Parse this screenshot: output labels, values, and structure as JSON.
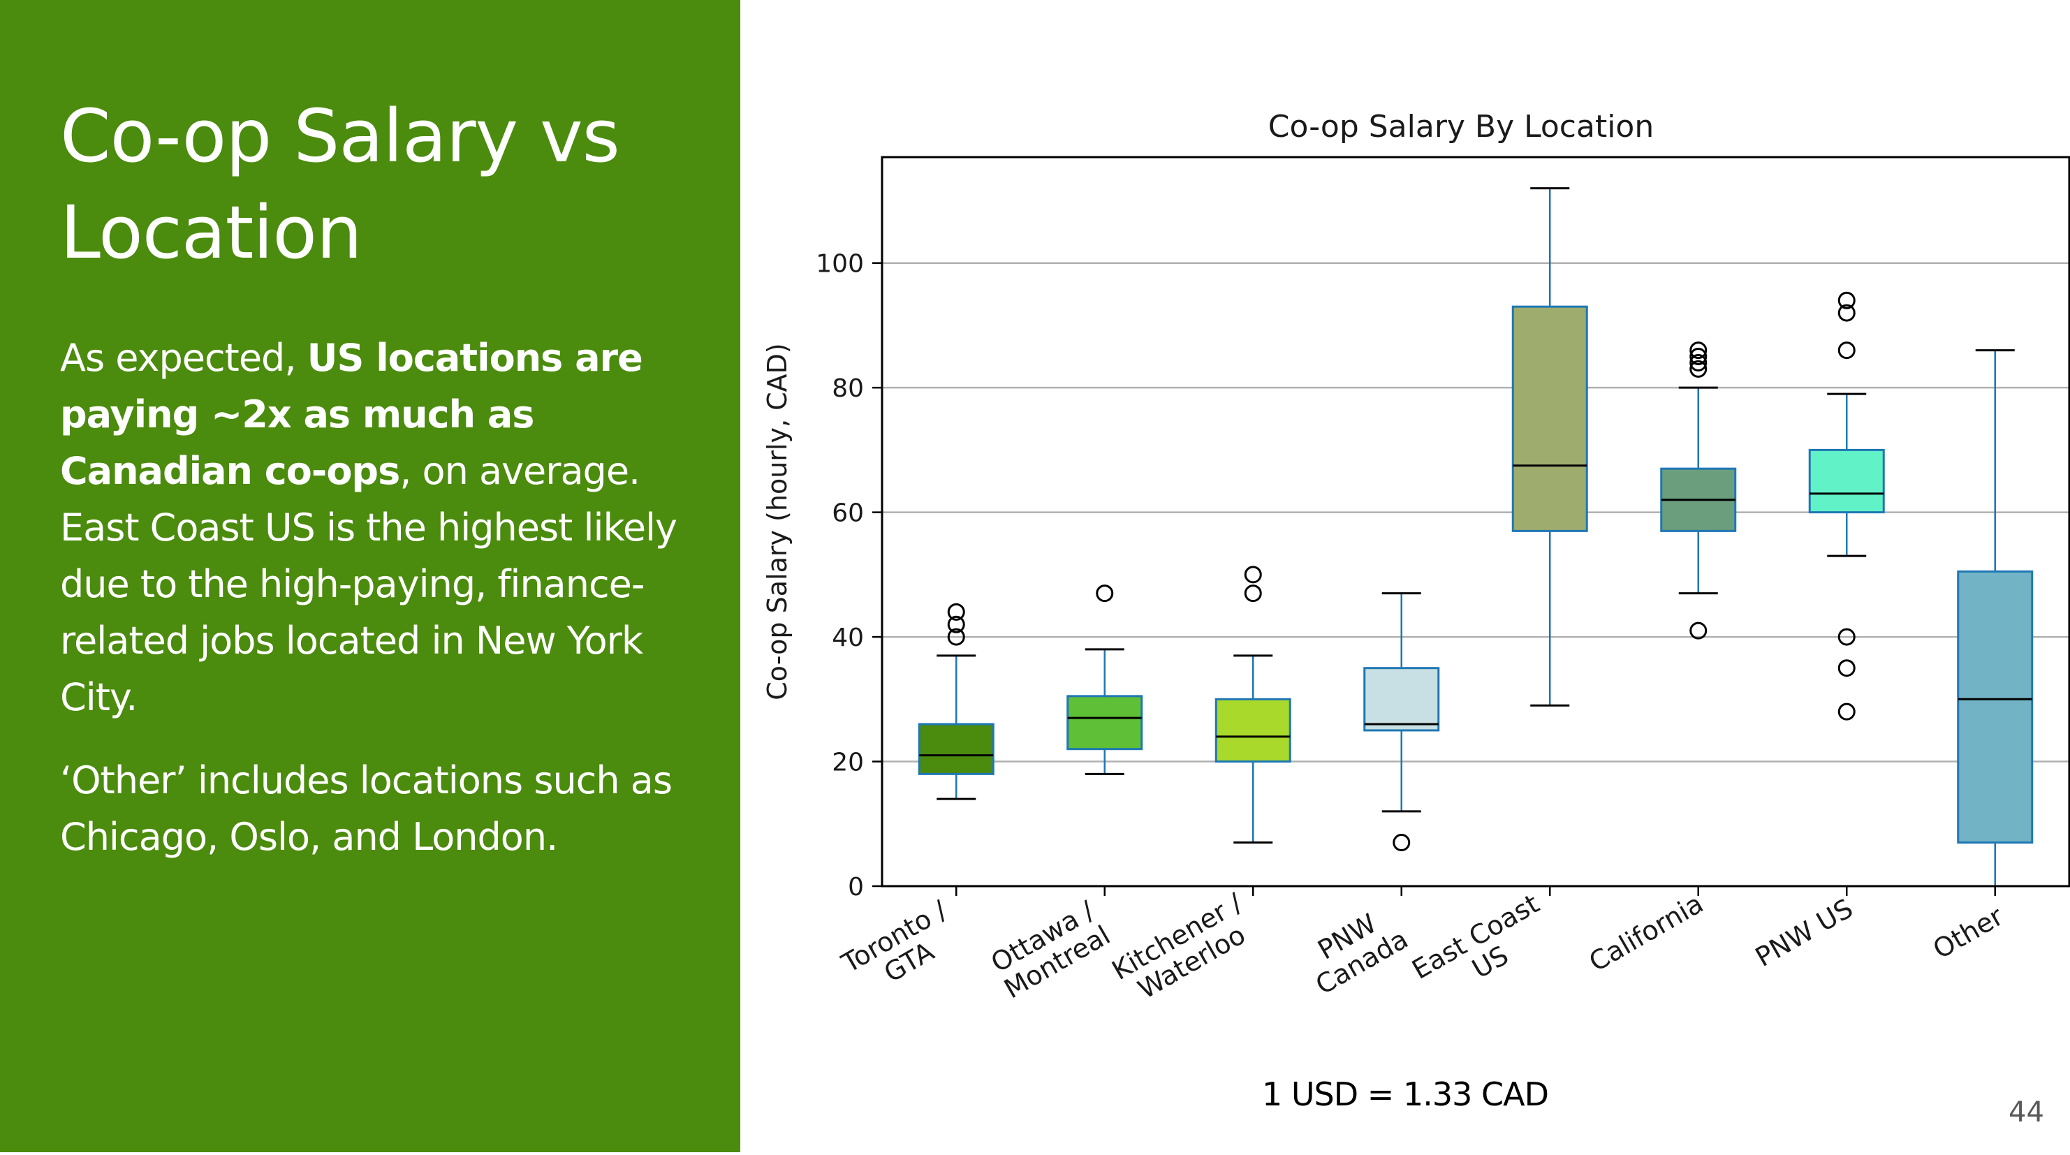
{
  "slide": {
    "title_line1": "Co-op Salary vs",
    "title_line2": "Location",
    "paragraph1": {
      "part1": "As expected, ",
      "bold": "US locations are paying ~2x as much as Canadian co-ops",
      "part2": ", on average. East Coast US is the highest likely due to the high-paying, finance-related jobs located in New York City."
    },
    "paragraph2": "‘Other’ includes locations such as Chicago, Oslo, and London.",
    "footnote": "1 USD = 1.33 CAD",
    "page_number": "44"
  },
  "colors": {
    "panel_green": "#4b8b0d",
    "whisker_blue": "#1f77b4"
  },
  "chart_data": {
    "type": "box",
    "title": "Co-op Salary By Location",
    "xlabel": "",
    "ylabel": "Co-op Salary (hourly, CAD)",
    "ylim": [
      0,
      117
    ],
    "yticks": [
      0,
      20,
      40,
      60,
      80,
      100
    ],
    "grid": "horizontal",
    "categories": [
      {
        "label_lines": [
          "Toronto /",
          "GTA"
        ],
        "color": "#4b8b0d",
        "whisker_low": 14,
        "q1": 18,
        "median": 21,
        "q3": 26,
        "whisker_high": 37,
        "outliers": [
          40,
          42,
          44
        ]
      },
      {
        "label_lines": [
          "Ottawa /",
          "Montreal"
        ],
        "color": "#5fbf36",
        "whisker_low": 18,
        "q1": 22,
        "median": 27,
        "q3": 30.5,
        "whisker_high": 38,
        "outliers": [
          47
        ]
      },
      {
        "label_lines": [
          "Kitchener /",
          "Waterloo"
        ],
        "color": "#a9d92b",
        "whisker_low": 7,
        "q1": 20,
        "median": 24,
        "q3": 30,
        "whisker_high": 37,
        "outliers": [
          47,
          50
        ]
      },
      {
        "label_lines": [
          "PNW",
          "Canada"
        ],
        "color": "#c8dfe3",
        "whisker_low": 12,
        "q1": 25,
        "median": 26,
        "q3": 35,
        "whisker_high": 47,
        "outliers": [
          7
        ]
      },
      {
        "label_lines": [
          "East Coast",
          "US"
        ],
        "color": "#9eac6e",
        "whisker_low": 29,
        "q1": 57,
        "median": 67.5,
        "q3": 93,
        "whisker_high": 112,
        "outliers": []
      },
      {
        "label_lines": [
          "California"
        ],
        "color": "#6a9e7c",
        "whisker_low": 47,
        "q1": 57,
        "median": 62,
        "q3": 67,
        "whisker_high": 80,
        "outliers": [
          41,
          83,
          84,
          85,
          86
        ]
      },
      {
        "label_lines": [
          "PNW US"
        ],
        "color": "#61f2c8",
        "whisker_low": 53,
        "q1": 60,
        "median": 63,
        "q3": 70,
        "whisker_high": 79,
        "outliers": [
          28,
          35,
          40,
          86,
          92,
          94
        ]
      },
      {
        "label_lines": [
          "Other"
        ],
        "color": "#72b3c5",
        "whisker_low": 0,
        "q1": 7,
        "median": 30,
        "q3": 50.5,
        "whisker_high": 86,
        "outliers": []
      }
    ]
  }
}
